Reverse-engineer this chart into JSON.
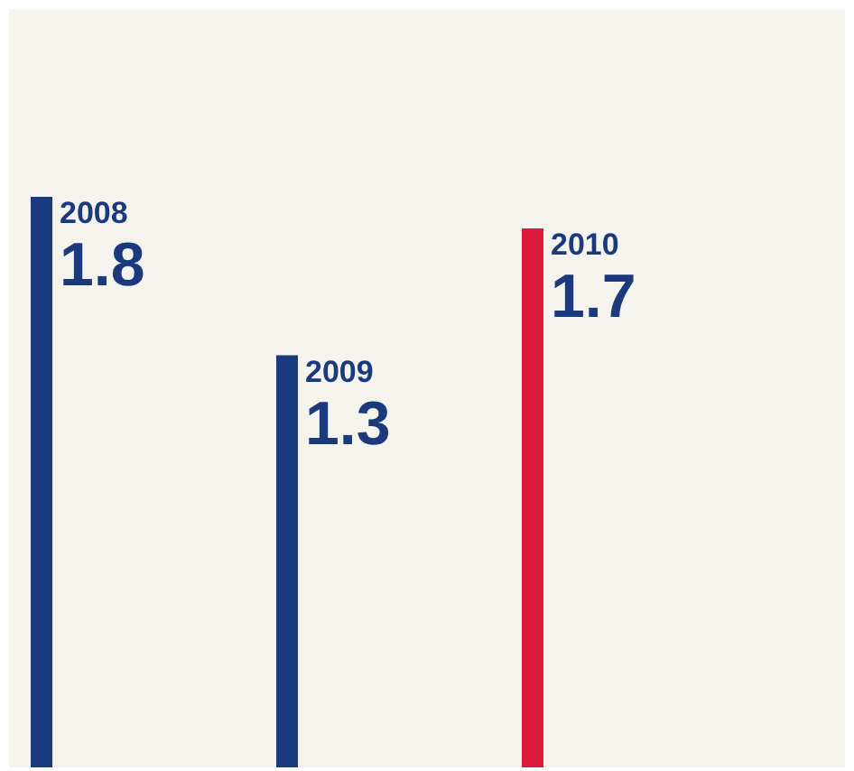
{
  "chart_data": {
    "type": "bar",
    "categories": [
      "2008",
      "2009",
      "2010"
    ],
    "values": [
      1.8,
      1.3,
      1.7
    ],
    "colors": [
      "#1b3a7e",
      "#1b3a7e",
      "#dc1a3c"
    ],
    "data_labels": true
  }
}
